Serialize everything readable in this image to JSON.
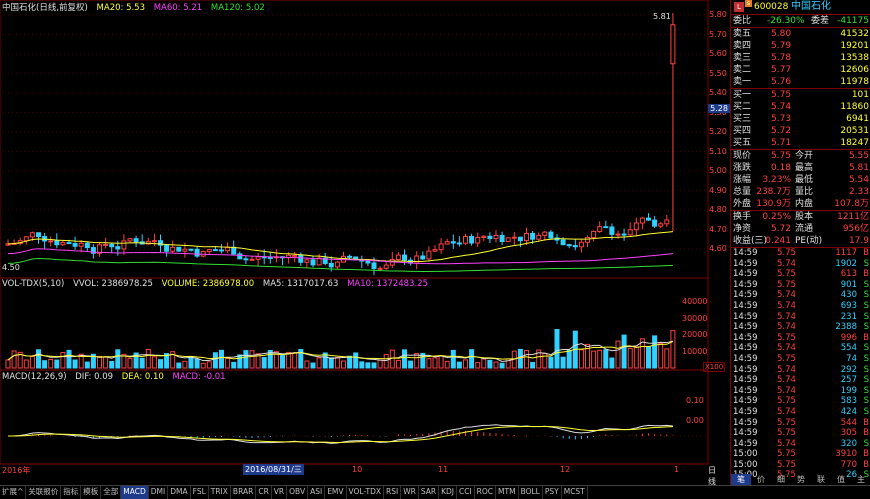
{
  "stock": {
    "code": "600028",
    "name": "中国石化",
    "logo": "L",
    "logo_sub": "s"
  },
  "main_legend": {
    "title": "中国石化(日线,前复权)",
    "ma20": "MA20: 5.53",
    "ma60": "MA60: 5.21",
    "ma120": "MA120: 5.02"
  },
  "vol_legend": {
    "title": "VOL-TDX(5,10)",
    "vvol": "VVOL: 2386978.25",
    "volume": "VOLUME: 2386978.00",
    "ma5": "MA5: 1317017.63",
    "ma10": "MA10: 1372483.25"
  },
  "macd_legend": {
    "title": "MACD(12,26,9)",
    "dif": "DIF: 0.09",
    "dea": "DEA: 0.10",
    "macd": "MACD: -0.01"
  },
  "price_labels": [
    "5.80",
    "5.70",
    "5.60",
    "5.50",
    "5.40",
    "5.30",
    "5.20",
    "5.10",
    "5.00",
    "4.90",
    "4.80",
    "4.70",
    "4.60"
  ],
  "current_price_tag": "5.28",
  "high_mark": "5.81",
  "low_mark": "4.50",
  "vol_axis": [
    "40000",
    "30000",
    "20000",
    "10000"
  ],
  "vol_unit": "X100",
  "macd_axis": [
    "0.10",
    "0.00"
  ],
  "time_axis": {
    "year": "2016年",
    "cursor_date": "2016/08/31/三",
    "m10": "10",
    "m11": "11",
    "m12": "12",
    "m1": "1",
    "period": "日线"
  },
  "order_book": {
    "wb_label": "委比",
    "wb_value": "-26.30%",
    "wc_label": "委差",
    "wc_value": "-41175",
    "sells": [
      {
        "label": "卖五",
        "price": "5.80",
        "vol": "41532"
      },
      {
        "label": "卖四",
        "price": "5.79",
        "vol": "19201"
      },
      {
        "label": "卖三",
        "price": "5.78",
        "vol": "13538"
      },
      {
        "label": "卖二",
        "price": "5.77",
        "vol": "12606"
      },
      {
        "label": "卖一",
        "price": "5.76",
        "vol": "11978"
      }
    ],
    "buys": [
      {
        "label": "买一",
        "price": "5.75",
        "vol": "101"
      },
      {
        "label": "买二",
        "price": "5.74",
        "vol": "11860"
      },
      {
        "label": "买三",
        "price": "5.73",
        "vol": "6941"
      },
      {
        "label": "买四",
        "price": "5.72",
        "vol": "20531"
      },
      {
        "label": "买五",
        "price": "5.71",
        "vol": "18247"
      }
    ]
  },
  "quote": [
    {
      "l1": "现价",
      "v1": "5.75",
      "l2": "今开",
      "v2": "5.55"
    },
    {
      "l1": "涨跌",
      "v1": "0.18",
      "l2": "最高",
      "v2": "5.81"
    },
    {
      "l1": "涨幅",
      "v1": "3.23%",
      "l2": "最低",
      "v2": "5.54"
    },
    {
      "l1": "总量",
      "v1": "238.7万",
      "l2": "量比",
      "v2": "2.33"
    },
    {
      "l1": "外盘",
      "v1": "130.9万",
      "l2": "内盘",
      "v2": "107.8万"
    }
  ],
  "fund": [
    {
      "l1": "换手",
      "v1": "0.25%",
      "l2": "股本",
      "v2": "1211亿"
    },
    {
      "l1": "净资",
      "v1": "5.72",
      "l2": "流通",
      "v2": "956亿"
    },
    {
      "l1": "收益(三)",
      "v1": "0.241",
      "l2": "PE(动)",
      "v2": "17.9"
    }
  ],
  "ticks": [
    {
      "t": "14:59",
      "p": "5.75",
      "v": "1117",
      "s": "B"
    },
    {
      "t": "14:59",
      "p": "5.74",
      "v": "1902",
      "s": "S"
    },
    {
      "t": "14:59",
      "p": "5.75",
      "v": "613",
      "s": "B"
    },
    {
      "t": "14:59",
      "p": "5.75",
      "v": "901",
      "s": "S"
    },
    {
      "t": "14:59",
      "p": "5.74",
      "v": "430",
      "s": "S"
    },
    {
      "t": "14:59",
      "p": "5.74",
      "v": "693",
      "s": "S"
    },
    {
      "t": "14:59",
      "p": "5.74",
      "v": "231",
      "s": "S"
    },
    {
      "t": "14:59",
      "p": "5.74",
      "v": "2388",
      "s": "S"
    },
    {
      "t": "14:59",
      "p": "5.75",
      "v": "996",
      "s": "B"
    },
    {
      "t": "14:59",
      "p": "5.74",
      "v": "554",
      "s": "S"
    },
    {
      "t": "14:59",
      "p": "5.75",
      "v": "74",
      "s": "S"
    },
    {
      "t": "14:59",
      "p": "5.74",
      "v": "292",
      "s": "S"
    },
    {
      "t": "14:59",
      "p": "5.74",
      "v": "257",
      "s": "S"
    },
    {
      "t": "14:59",
      "p": "5.74",
      "v": "199",
      "s": "S"
    },
    {
      "t": "14:59",
      "p": "5.75",
      "v": "583",
      "s": "S"
    },
    {
      "t": "14:59",
      "p": "5.74",
      "v": "424",
      "s": "S"
    },
    {
      "t": "14:59",
      "p": "5.75",
      "v": "544",
      "s": "B"
    },
    {
      "t": "14:59",
      "p": "5.75",
      "v": "305",
      "s": "B"
    },
    {
      "t": "14:59",
      "p": "5.74",
      "v": "320",
      "s": "S"
    },
    {
      "t": "15:00",
      "p": "5.75",
      "v": "3910",
      "s": "B"
    },
    {
      "t": "15:00",
      "p": "5.75",
      "v": "770",
      "s": "B"
    },
    {
      "t": "15:00",
      "p": "5.75",
      "v": "26",
      "s": "S"
    }
  ],
  "panel_tabs": [
    "笔",
    "价",
    "细",
    "势",
    "联",
    "值",
    "主"
  ],
  "bottom_left": {
    "expand": "扩展^",
    "news": "关联报价"
  },
  "indicator_tabs": [
    "指标",
    "模板",
    "全部",
    "MACD",
    "DMI",
    "DMA",
    "FSL",
    "TRIX",
    "BRAR",
    "CR",
    "VR",
    "OBV",
    "ASI",
    "EMV",
    "VOL-TDX",
    "RSI",
    "WR",
    "SAR",
    "KDJ",
    "CCI",
    "ROC",
    "MTM",
    "BOLL",
    "PSY",
    "MCST"
  ],
  "colors": {
    "up": "#ff4040",
    "down": "#30d0ff",
    "ma20": "#ffff30",
    "ma60": "#ff40ff",
    "ma120": "#30e030"
  }
}
